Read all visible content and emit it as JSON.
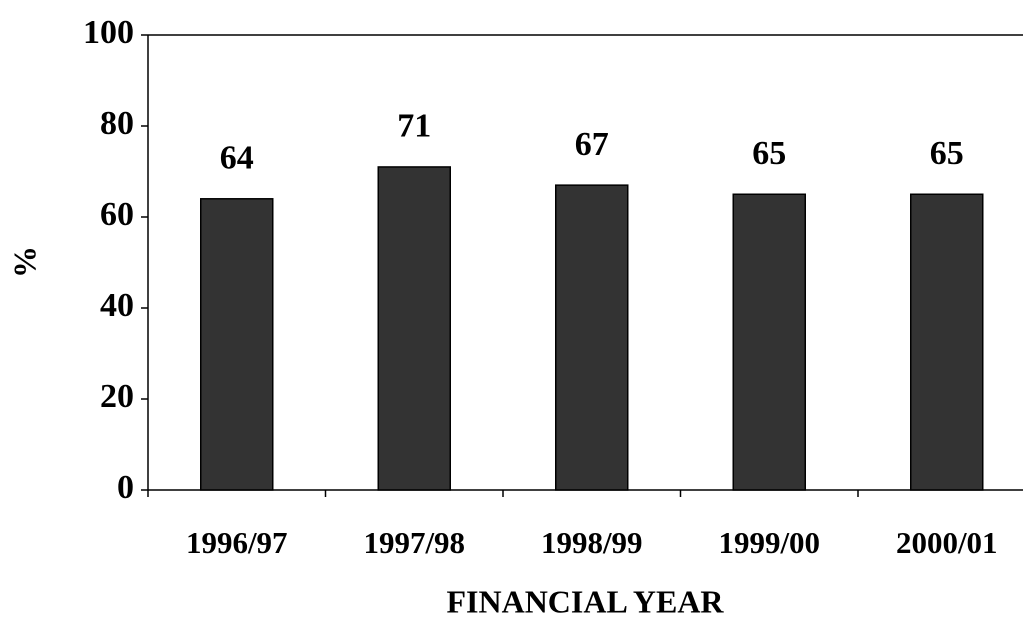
{
  "chart_data": {
    "type": "bar",
    "categories": [
      "1996/97",
      "1997/98",
      "1998/99",
      "1999/00",
      "2000/01"
    ],
    "values": [
      64,
      71,
      67,
      65,
      65
    ],
    "color": "#333333",
    "ylim": [
      0,
      100
    ],
    "yticks": [
      0,
      20,
      40,
      60,
      80,
      100
    ],
    "x_label": "FINANCIAL YEAR",
    "y_label": "%",
    "grid": false
  }
}
